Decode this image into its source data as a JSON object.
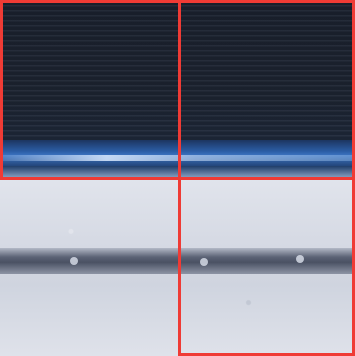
{
  "colors": {
    "grid_outline": "#ef3b35",
    "top_dark": "#1e2533",
    "top_blue": "#2c5fa8",
    "bottom_light": "#d6dae4",
    "band_dark": "#4a5163"
  },
  "grid": {
    "rows": 2,
    "columns": 2,
    "highlighted_cells": [
      "top-left",
      "top-right",
      "bottom-right"
    ]
  }
}
